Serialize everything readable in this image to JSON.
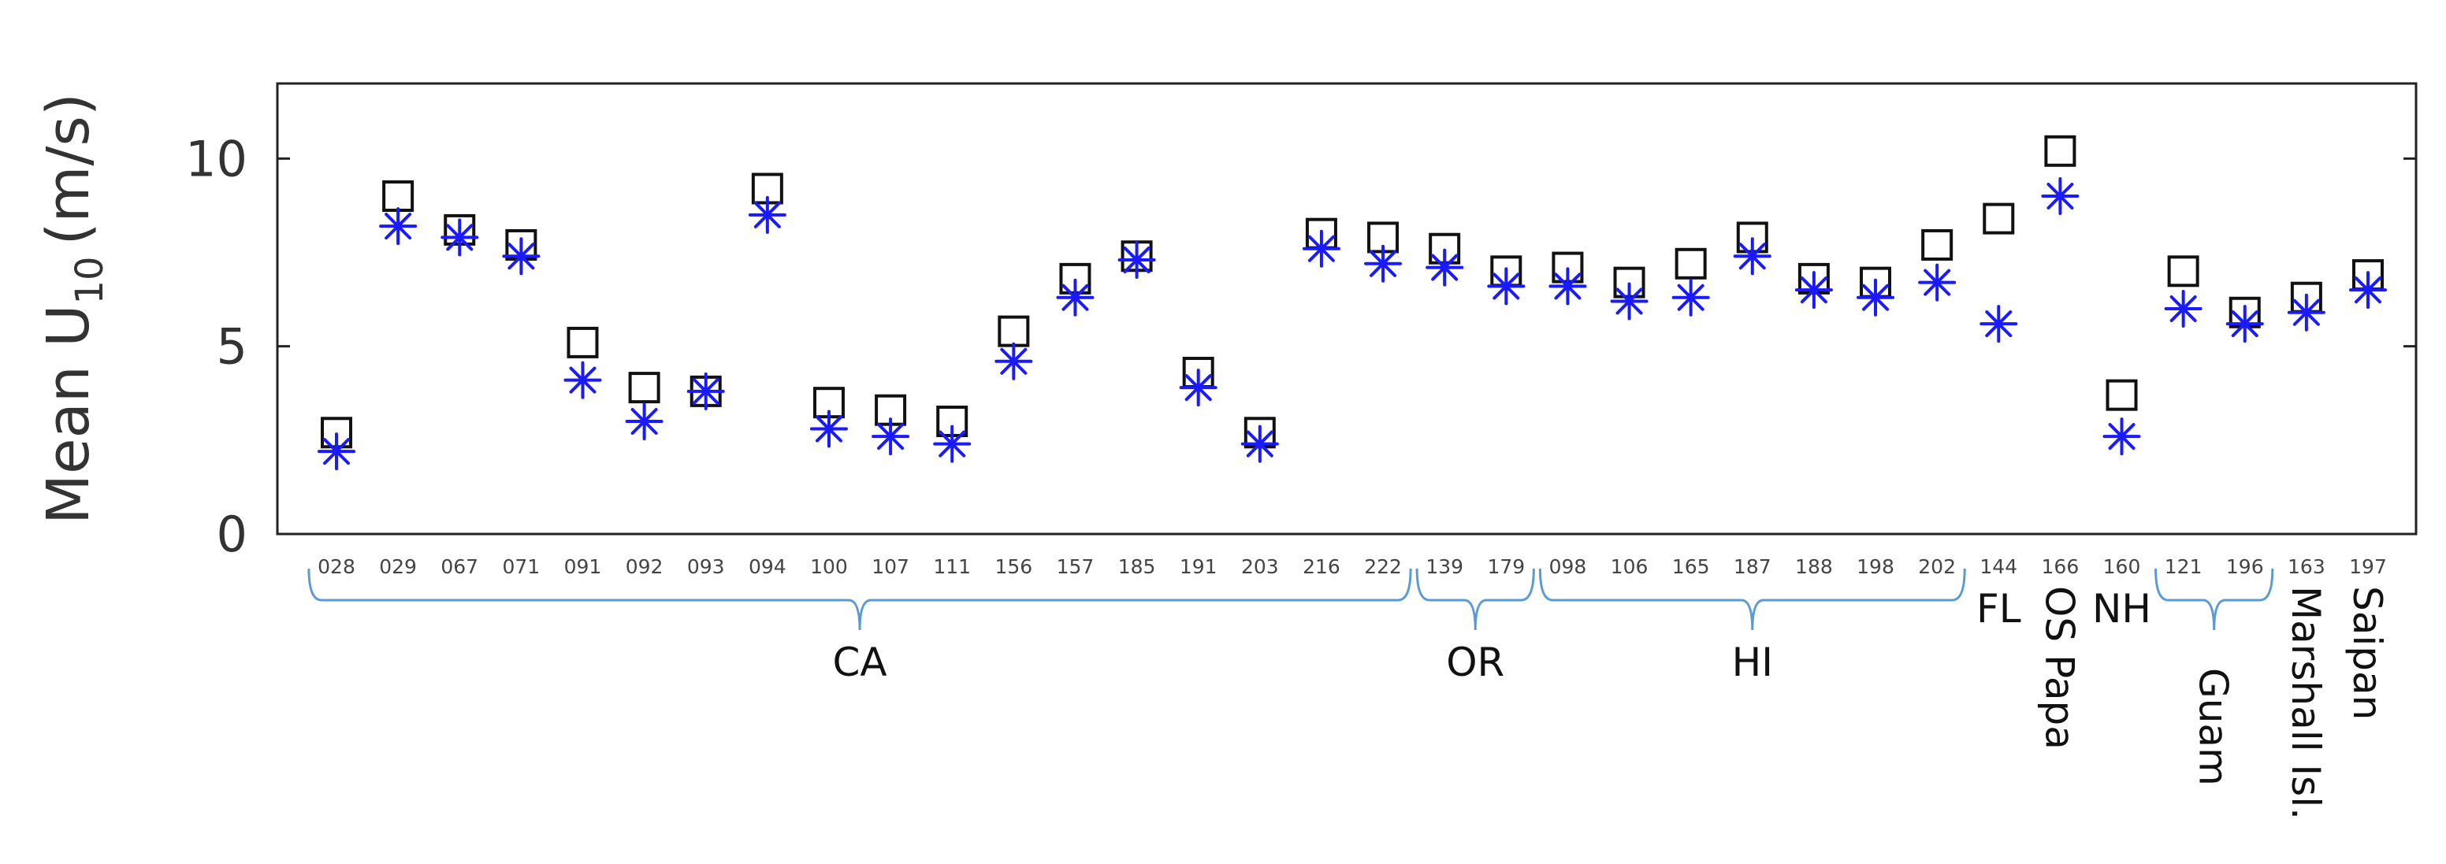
{
  "chart_data": {
    "type": "scatter",
    "title": "",
    "xlabel": "",
    "ylabel": "Mean U",
    "ylabel_subscript": "10",
    "ylabel_unit": "(m/s)",
    "ylim": [
      0,
      12
    ],
    "yticks": [
      0,
      5,
      10
    ],
    "grid": false,
    "categories": [
      "028",
      "029",
      "067",
      "071",
      "091",
      "092",
      "093",
      "094",
      "100",
      "107",
      "111",
      "156",
      "157",
      "185",
      "191",
      "203",
      "216",
      "222",
      "139",
      "179",
      "098",
      "106",
      "165",
      "187",
      "188",
      "198",
      "202",
      "144",
      "166",
      "160",
      "121",
      "196",
      "163",
      "197"
    ],
    "series": [
      {
        "marker": "square",
        "color": "#111111",
        "values": [
          2.7,
          9.0,
          8.1,
          7.7,
          5.1,
          3.9,
          3.8,
          9.2,
          3.5,
          3.3,
          3.0,
          5.4,
          6.8,
          7.4,
          4.3,
          2.7,
          8.0,
          7.9,
          7.6,
          7.0,
          7.1,
          6.7,
          7.2,
          7.9,
          6.8,
          6.7,
          7.7,
          8.4,
          10.2,
          3.7,
          7.0,
          5.9,
          6.3,
          6.9
        ]
      },
      {
        "marker": "asterisk",
        "color": "#1a1aff",
        "values": [
          2.2,
          8.2,
          7.9,
          7.4,
          4.1,
          3.0,
          3.8,
          8.5,
          2.8,
          2.6,
          2.4,
          4.6,
          6.3,
          7.3,
          3.9,
          2.4,
          7.6,
          7.2,
          7.1,
          6.6,
          6.6,
          6.2,
          6.3,
          7.4,
          6.5,
          6.3,
          6.7,
          5.6,
          9.0,
          2.6,
          6.0,
          5.6,
          5.9,
          6.5
        ]
      }
    ],
    "groups": [
      {
        "label": "CA",
        "from": 0,
        "to": 17,
        "bracket": true,
        "orientation": "horizontal"
      },
      {
        "label": "OR",
        "from": 18,
        "to": 19,
        "bracket": true,
        "orientation": "horizontal"
      },
      {
        "label": "HI",
        "from": 20,
        "to": 26,
        "bracket": true,
        "orientation": "horizontal"
      },
      {
        "label": "FL",
        "from": 27,
        "to": 27,
        "bracket": false,
        "orientation": "horizontal"
      },
      {
        "label": "OS Papa",
        "from": 28,
        "to": 28,
        "bracket": false,
        "orientation": "vertical"
      },
      {
        "label": "NH",
        "from": 29,
        "to": 29,
        "bracket": false,
        "orientation": "horizontal"
      },
      {
        "label": "Guam",
        "from": 30,
        "to": 31,
        "bracket": true,
        "orientation": "vertical"
      },
      {
        "label": "Marshall Isl.",
        "from": 32,
        "to": 32,
        "bracket": false,
        "orientation": "vertical"
      },
      {
        "label": "Saipan",
        "from": 33,
        "to": 33,
        "bracket": false,
        "orientation": "vertical"
      }
    ],
    "colors": {
      "axis": "#222222",
      "bracket": "#5b9bd5"
    }
  }
}
